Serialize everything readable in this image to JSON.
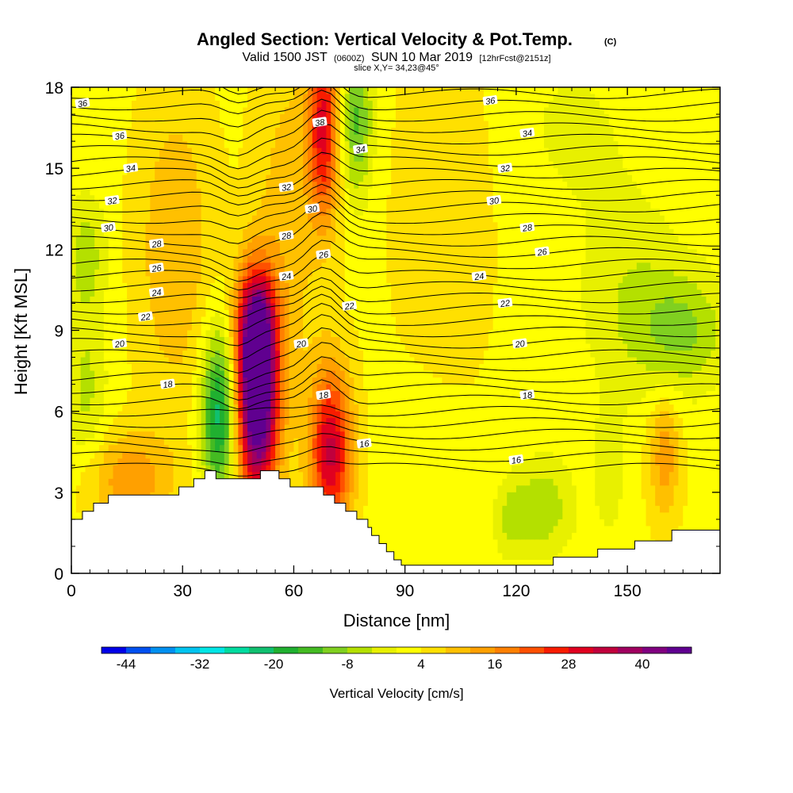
{
  "figure": {
    "title": "Angled Section: Vertical Velocity & Pot.Temp.",
    "title_suffix": "(C)",
    "valid_prefix": "Valid 1500 JST",
    "valid_zulu": "(0600Z)",
    "valid_date": "SUN 10 Mar 2019",
    "forecast": "[12hrFcst@2151z]",
    "slice": "slice X,Y= 34,23@45°"
  },
  "chart_data": {
    "type": "heatmap",
    "xlabel": "Distance [nm]",
    "ylabel": "Height [Kft MSL]",
    "xlim": [
      0,
      175
    ],
    "ylim": [
      0,
      18
    ],
    "xticks": [
      0,
      30,
      60,
      90,
      120,
      150
    ],
    "yticks": [
      0,
      3,
      6,
      9,
      12,
      15,
      18
    ],
    "colorbar": {
      "label": "Vertical Velocity [cm/s]",
      "ticks": [
        -44,
        -32,
        -20,
        -8,
        4,
        16,
        28,
        40
      ],
      "range": [
        -48,
        48
      ],
      "colors": [
        "#0000e8",
        "#0050f0",
        "#0090f0",
        "#00c4f0",
        "#00e6e6",
        "#00dca0",
        "#10c070",
        "#20b030",
        "#44bb22",
        "#80d020",
        "#b4e000",
        "#e8f000",
        "#ffff00",
        "#ffe000",
        "#ffc000",
        "#ffa000",
        "#ff8000",
        "#ff5000",
        "#f81c00",
        "#e00020",
        "#c0003c",
        "#a00060",
        "#800080",
        "#600090"
      ]
    },
    "terrain": [
      [
        0,
        2
      ],
      [
        3,
        2
      ],
      [
        3,
        2.3
      ],
      [
        6,
        2.3
      ],
      [
        6,
        2.6
      ],
      [
        10,
        2.6
      ],
      [
        10,
        2.9
      ],
      [
        29,
        2.9
      ],
      [
        29,
        3.2
      ],
      [
        33,
        3.2
      ],
      [
        33,
        3.5
      ],
      [
        36,
        3.5
      ],
      [
        36,
        3.8
      ],
      [
        39,
        3.8
      ],
      [
        39,
        3.5
      ],
      [
        51,
        3.5
      ],
      [
        51,
        3.8
      ],
      [
        56,
        3.8
      ],
      [
        56,
        3.5
      ],
      [
        59,
        3.5
      ],
      [
        59,
        3.2
      ],
      [
        68,
        3.2
      ],
      [
        68,
        2.9
      ],
      [
        71,
        2.9
      ],
      [
        71,
        2.6
      ],
      [
        74,
        2.6
      ],
      [
        74,
        2.3
      ],
      [
        77,
        2.3
      ],
      [
        77,
        2.0
      ],
      [
        80,
        2.0
      ],
      [
        80,
        1.7
      ],
      [
        81,
        1.7
      ],
      [
        81,
        1.4
      ],
      [
        83,
        1.4
      ],
      [
        83,
        1.1
      ],
      [
        85,
        1.1
      ],
      [
        85,
        0.8
      ],
      [
        87,
        0.8
      ],
      [
        87,
        0.5
      ],
      [
        89,
        0.5
      ],
      [
        89,
        0.3
      ],
      [
        130,
        0.3
      ],
      [
        130,
        0.6
      ],
      [
        142,
        0.6
      ],
      [
        142,
        0.9
      ],
      [
        152,
        0.9
      ],
      [
        152,
        1.2
      ],
      [
        162,
        1.2
      ],
      [
        162,
        1.6
      ],
      [
        175,
        1.6
      ]
    ],
    "velocity_features": [
      {
        "x": 50,
        "y": 6.5,
        "sx": 4,
        "sy": 2.6,
        "v": 52
      },
      {
        "x": 50,
        "y": 9.2,
        "sx": 3.5,
        "sy": 1.5,
        "v": 24
      },
      {
        "x": 70,
        "y": 4.5,
        "sx": 4,
        "sy": 2.2,
        "v": 30
      },
      {
        "x": 68,
        "y": 16.5,
        "sx": 3,
        "sy": 2.5,
        "v": 26
      },
      {
        "x": 58,
        "y": 13,
        "sx": 6,
        "sy": 5,
        "v": 7
      },
      {
        "x": 16,
        "y": 3.5,
        "sx": 8,
        "sy": 1.2,
        "v": 12
      },
      {
        "x": 40,
        "y": 5.9,
        "sx": 3.5,
        "sy": 2.2,
        "v": -26
      },
      {
        "x": 77,
        "y": 16.8,
        "sx": 3,
        "sy": 2,
        "v": -16
      },
      {
        "x": 4,
        "y": 11.8,
        "sx": 4,
        "sy": 1.6,
        "v": -9
      },
      {
        "x": 4,
        "y": 6.8,
        "sx": 4,
        "sy": 2,
        "v": -8
      },
      {
        "x": 165,
        "y": 9,
        "sx": 9,
        "sy": 1.6,
        "v": -11
      },
      {
        "x": 127,
        "y": 2.4,
        "sx": 6,
        "sy": 1.3,
        "v": -10
      },
      {
        "x": 118,
        "y": 2,
        "sx": 3,
        "sy": 1,
        "v": -6
      },
      {
        "x": 150,
        "y": 10.5,
        "sx": 10,
        "sy": 3,
        "v": -6
      },
      {
        "x": 145,
        "y": 3.8,
        "sx": 3,
        "sy": 1.6,
        "v": -6
      },
      {
        "x": 160,
        "y": 4.4,
        "sx": 3,
        "sy": 1.6,
        "v": 12
      },
      {
        "x": 95,
        "y": 4.5,
        "sx": 8,
        "sy": 2,
        "v": -3
      },
      {
        "x": 100,
        "y": 13,
        "sx": 9,
        "sy": 5,
        "v": 4
      },
      {
        "x": 28,
        "y": 12,
        "sx": 7,
        "sy": 4,
        "v": 9
      },
      {
        "x": 135,
        "y": 16.5,
        "sx": 10,
        "sy": 2,
        "v": -4
      }
    ],
    "contour_labels": [
      {
        "text": "36",
        "x": 3,
        "y": 17.4
      },
      {
        "text": "36",
        "x": 13,
        "y": 16.2
      },
      {
        "text": "34",
        "x": 16,
        "y": 15.0
      },
      {
        "text": "32",
        "x": 11,
        "y": 13.8
      },
      {
        "text": "30",
        "x": 10,
        "y": 12.8
      },
      {
        "text": "28",
        "x": 23,
        "y": 12.2
      },
      {
        "text": "26",
        "x": 23,
        "y": 11.3
      },
      {
        "text": "24",
        "x": 23,
        "y": 10.4
      },
      {
        "text": "22",
        "x": 20,
        "y": 9.5
      },
      {
        "text": "20",
        "x": 13,
        "y": 8.5
      },
      {
        "text": "18",
        "x": 26,
        "y": 7.0
      },
      {
        "text": "32",
        "x": 58,
        "y": 14.3
      },
      {
        "text": "30",
        "x": 65,
        "y": 13.5
      },
      {
        "text": "28",
        "x": 58,
        "y": 12.5
      },
      {
        "text": "26",
        "x": 68,
        "y": 11.8
      },
      {
        "text": "24",
        "x": 58,
        "y": 11.0
      },
      {
        "text": "22",
        "x": 75,
        "y": 9.9
      },
      {
        "text": "20",
        "x": 62,
        "y": 8.5
      },
      {
        "text": "18",
        "x": 68,
        "y": 6.6
      },
      {
        "text": "16",
        "x": 79,
        "y": 4.8
      },
      {
        "text": "38",
        "x": 67,
        "y": 16.7
      },
      {
        "text": "34",
        "x": 78,
        "y": 15.7
      },
      {
        "text": "36",
        "x": 113,
        "y": 17.5
      },
      {
        "text": "34",
        "x": 123,
        "y": 16.3
      },
      {
        "text": "32",
        "x": 117,
        "y": 15.0
      },
      {
        "text": "30",
        "x": 114,
        "y": 13.8
      },
      {
        "text": "28",
        "x": 123,
        "y": 12.8
      },
      {
        "text": "26",
        "x": 127,
        "y": 11.9
      },
      {
        "text": "24",
        "x": 110,
        "y": 11.0
      },
      {
        "text": "22",
        "x": 117,
        "y": 10.0
      },
      {
        "text": "20",
        "x": 121,
        "y": 8.5
      },
      {
        "text": "18",
        "x": 123,
        "y": 6.6
      },
      {
        "text": "16",
        "x": 120,
        "y": 4.2
      }
    ]
  }
}
